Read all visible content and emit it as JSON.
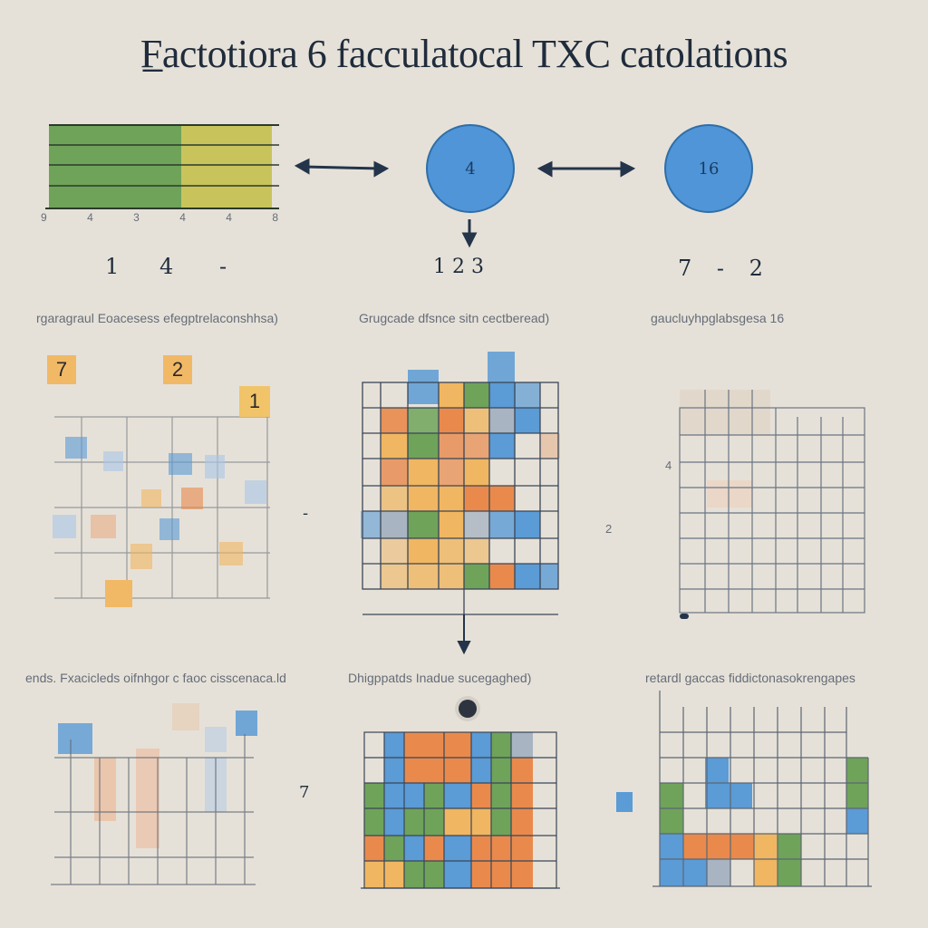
{
  "title": "F̲actotiora 6 facculatocal TXC  catolations",
  "top_row": {
    "bar_ticks": [
      "9",
      "4",
      "3",
      "4",
      "4",
      "8"
    ],
    "bar_numbers": [
      "1",
      "4",
      "-"
    ],
    "circle_a": "4",
    "circle_a_numbers": "1 2 3",
    "circle_b": "16",
    "circle_b_numbers": "7 - 2"
  },
  "section_labels": {
    "mid_left": "rgaragraul Eoacesess efegptrelaconshhsa)",
    "mid_center": "Grugcade dfsnce sitn cectberead)",
    "mid_right": "gaucluyhpglabsgesa  16",
    "bot_left": "ends. Fxacicleds oifnhgor c faoc cisscenaca.ld",
    "bot_center": "Dhigppatds Inadue sucegaghed)",
    "bot_right": "retardl gaccas fiddictonasokrengapes"
  },
  "stickies": {
    "s1": "7",
    "s2": "2",
    "s3": "1",
    "s4": ""
  },
  "side_marks": {
    "mid_left_dash": "-",
    "mid_right_mark": "2",
    "grid_right_tick": "4",
    "bot_left_num": "7"
  },
  "colors": {
    "green": "#6fa35a",
    "yellow": "#c9c35c",
    "blue": "#5b9bd6",
    "orange": "#e98a4c",
    "amber": "#f0b661",
    "grey": "#a9b4c2",
    "background": "#e6e1d8"
  }
}
